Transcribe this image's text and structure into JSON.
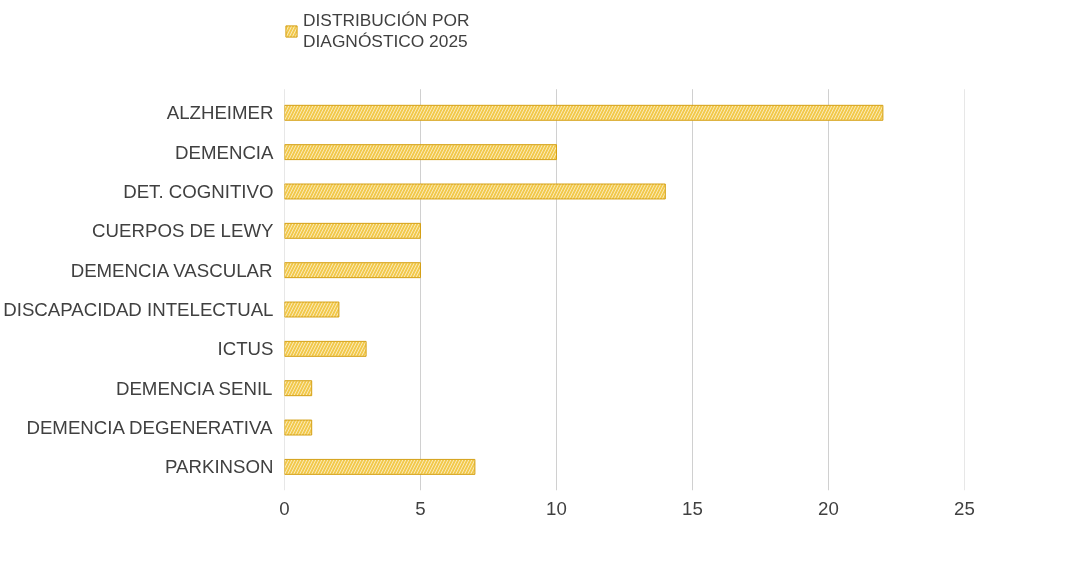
{
  "chart_data": {
    "type": "bar",
    "orientation": "horizontal",
    "categories": [
      "ALZHEIMER",
      "DEMENCIA",
      "DET. COGNITIVO",
      "CUERPOS DE LEWY",
      "DEMENCIA VASCULAR",
      "DISCAPACIDAD INTELECTUAL",
      "ICTUS",
      "DEMENCIA SENIL",
      "DEMENCIA DEGENERATIVA",
      "PARKINSON"
    ],
    "series": [
      {
        "name": "DISTRIBUCIÓN POR DIAGNÓSTICO 2025",
        "color": "#f2c94c",
        "values": [
          22,
          10,
          14,
          5,
          5,
          2,
          3,
          1,
          1,
          7
        ]
      }
    ],
    "xlim": [
      0,
      25
    ],
    "xticks": [
      0,
      5,
      10,
      15,
      20,
      25
    ],
    "grid": "x",
    "legend": "top left"
  }
}
